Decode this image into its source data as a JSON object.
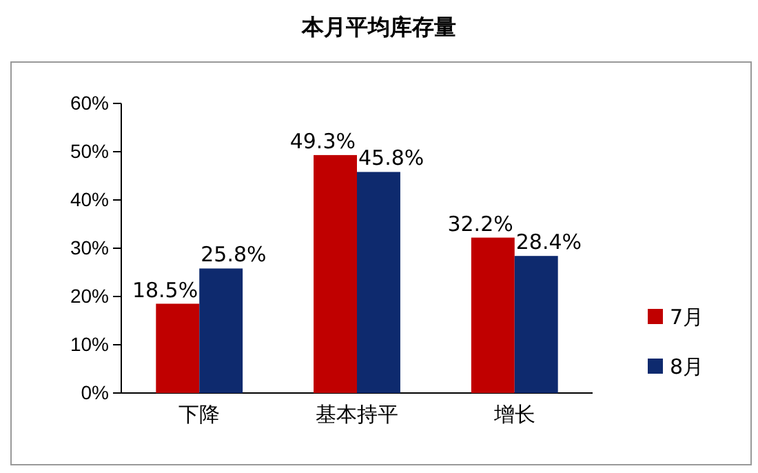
{
  "chart_data": {
    "type": "bar",
    "title": "本月平均库存量",
    "categories": [
      "下降",
      "基本持平",
      "增长"
    ],
    "series": [
      {
        "name": "7月",
        "color": "#c00000",
        "values": [
          18.5,
          49.3,
          32.2
        ],
        "value_labels": [
          "18.5%",
          "49.3%",
          "32.2%"
        ]
      },
      {
        "name": "8月",
        "color": "#0e2a6e",
        "values": [
          25.8,
          45.8,
          28.4
        ],
        "value_labels": [
          "25.8%",
          "45.8%",
          "28.4%"
        ]
      }
    ],
    "ylim": [
      0,
      60
    ],
    "yticks": [
      {
        "value": 0,
        "label": "0%"
      },
      {
        "value": 10,
        "label": "10%"
      },
      {
        "value": 20,
        "label": "20%"
      },
      {
        "value": 30,
        "label": "30%"
      },
      {
        "value": 40,
        "label": "40%"
      },
      {
        "value": 50,
        "label": "50%"
      },
      {
        "value": 60,
        "label": "60%"
      }
    ],
    "legend": "right",
    "grid": false
  }
}
